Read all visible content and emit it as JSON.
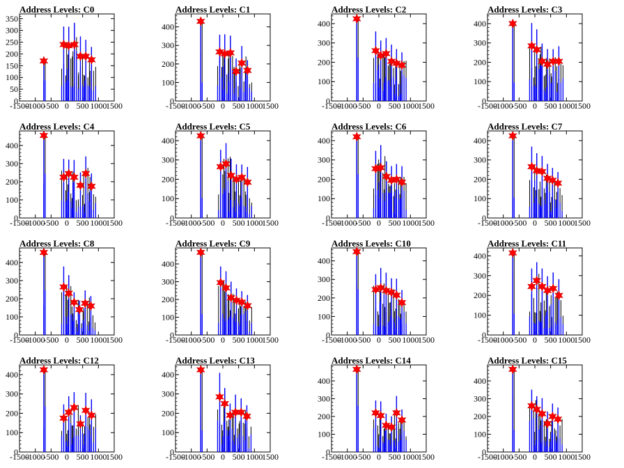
{
  "chart_data": [
    {
      "type": "bar",
      "title": "Address Levels: C0",
      "xlim": [
        -1500,
        1500
      ],
      "ylim": [
        0,
        370
      ],
      "yticks": [
        0,
        50,
        100,
        150,
        200,
        250,
        300,
        350
      ],
      "xticks": [
        -1500,
        -1000,
        -500,
        0,
        500,
        1000,
        1500
      ],
      "peaks": [
        {
          "x": -730,
          "y": 170
        },
        {
          "x": -100,
          "y": 240
        },
        {
          "x": 60,
          "y": 235
        },
        {
          "x": 240,
          "y": 240
        },
        {
          "x": 430,
          "y": 190
        },
        {
          "x": 600,
          "y": 190
        },
        {
          "x": 780,
          "y": 175
        }
      ]
    },
    {
      "type": "bar",
      "title": "Address Levels: C1",
      "xlim": [
        -1500,
        1500
      ],
      "ylim": [
        0,
        470
      ],
      "yticks": [
        0,
        100,
        200,
        300,
        400
      ],
      "xticks": [
        -1500,
        -1000,
        -500,
        0,
        500,
        1000,
        1500
      ],
      "peaks": [
        {
          "x": -700,
          "y": 430
        },
        {
          "x": -100,
          "y": 265
        },
        {
          "x": 60,
          "y": 255
        },
        {
          "x": 240,
          "y": 260
        },
        {
          "x": 420,
          "y": 160
        },
        {
          "x": 600,
          "y": 205
        },
        {
          "x": 780,
          "y": 165
        }
      ]
    },
    {
      "type": "bar",
      "title": "Address Levels: C2",
      "xlim": [
        -1500,
        1500
      ],
      "ylim": [
        0,
        450
      ],
      "yticks": [
        0,
        100,
        200,
        300,
        400
      ],
      "xticks": [
        -1500,
        -1000,
        -500,
        0,
        500,
        1000,
        1500
      ],
      "peaks": [
        {
          "x": -700,
          "y": 425
        },
        {
          "x": -100,
          "y": 260
        },
        {
          "x": 60,
          "y": 235
        },
        {
          "x": 230,
          "y": 245
        },
        {
          "x": 400,
          "y": 205
        },
        {
          "x": 560,
          "y": 195
        },
        {
          "x": 730,
          "y": 185
        }
      ]
    },
    {
      "type": "bar",
      "title": "Address Levels: C3",
      "xlim": [
        -1500,
        1500
      ],
      "ylim": [
        0,
        450
      ],
      "yticks": [
        0,
        100,
        200,
        300,
        400
      ],
      "xticks": [
        -1500,
        -1000,
        -500,
        0,
        500,
        1000,
        1500
      ],
      "peaks": [
        {
          "x": -700,
          "y": 400
        },
        {
          "x": -100,
          "y": 285
        },
        {
          "x": 60,
          "y": 265
        },
        {
          "x": 230,
          "y": 205
        },
        {
          "x": 400,
          "y": 190
        },
        {
          "x": 580,
          "y": 205
        },
        {
          "x": 760,
          "y": 205
        }
      ]
    },
    {
      "type": "bar",
      "title": "Address Levels: C4",
      "xlim": [
        -1500,
        1500
      ],
      "ylim": [
        0,
        480
      ],
      "yticks": [
        0,
        100,
        200,
        300,
        400
      ],
      "xticks": [
        -1500,
        -1000,
        -500,
        0,
        500,
        1000,
        1500
      ],
      "peaks": [
        {
          "x": -730,
          "y": 455
        },
        {
          "x": -100,
          "y": 225
        },
        {
          "x": 60,
          "y": 245
        },
        {
          "x": 230,
          "y": 225
        },
        {
          "x": 430,
          "y": 180
        },
        {
          "x": 600,
          "y": 245
        },
        {
          "x": 780,
          "y": 175
        }
      ]
    },
    {
      "type": "bar",
      "title": "Address Levels: C5",
      "xlim": [
        -1500,
        1500
      ],
      "ylim": [
        0,
        450
      ],
      "yticks": [
        0,
        100,
        200,
        300,
        400
      ],
      "xticks": [
        -1500,
        -1000,
        -500,
        0,
        500,
        1000,
        1500
      ],
      "peaks": [
        {
          "x": -700,
          "y": 425
        },
        {
          "x": -70,
          "y": 265
        },
        {
          "x": 100,
          "y": 280
        },
        {
          "x": 260,
          "y": 220
        },
        {
          "x": 430,
          "y": 200
        },
        {
          "x": 600,
          "y": 210
        },
        {
          "x": 780,
          "y": 185
        }
      ]
    },
    {
      "type": "bar",
      "title": "Address Levels: C6",
      "xlim": [
        -1500,
        1500
      ],
      "ylim": [
        0,
        450
      ],
      "yticks": [
        0,
        100,
        200,
        300,
        400
      ],
      "xticks": [
        -1500,
        -1000,
        -500,
        0,
        500,
        1000,
        1500
      ],
      "peaks": [
        {
          "x": -700,
          "y": 420
        },
        {
          "x": -100,
          "y": 255
        },
        {
          "x": 60,
          "y": 260
        },
        {
          "x": 240,
          "y": 215
        },
        {
          "x": 400,
          "y": 195
        },
        {
          "x": 560,
          "y": 200
        },
        {
          "x": 730,
          "y": 185
        }
      ]
    },
    {
      "type": "bar",
      "title": "Address Levels: C7",
      "xlim": [
        -1500,
        1500
      ],
      "ylim": [
        0,
        450
      ],
      "yticks": [
        0,
        100,
        200,
        300,
        400
      ],
      "xticks": [
        -1500,
        -1000,
        -500,
        0,
        500,
        1000,
        1500
      ],
      "peaks": [
        {
          "x": -700,
          "y": 425
        },
        {
          "x": -100,
          "y": 265
        },
        {
          "x": 60,
          "y": 245
        },
        {
          "x": 230,
          "y": 240
        },
        {
          "x": 400,
          "y": 205
        },
        {
          "x": 560,
          "y": 195
        },
        {
          "x": 730,
          "y": 180
        }
      ]
    },
    {
      "type": "bar",
      "title": "Address Levels: C8",
      "xlim": [
        -1500,
        1500
      ],
      "ylim": [
        0,
        480
      ],
      "yticks": [
        0,
        100,
        200,
        300,
        400
      ],
      "xticks": [
        -1500,
        -1000,
        -500,
        0,
        500,
        1000,
        1500
      ],
      "peaks": [
        {
          "x": -730,
          "y": 455
        },
        {
          "x": -100,
          "y": 265
        },
        {
          "x": 60,
          "y": 230
        },
        {
          "x": 230,
          "y": 180
        },
        {
          "x": 400,
          "y": 140
        },
        {
          "x": 580,
          "y": 175
        },
        {
          "x": 760,
          "y": 160
        }
      ]
    },
    {
      "type": "bar",
      "title": "Address Levels: C9",
      "xlim": [
        -1500,
        1500
      ],
      "ylim": [
        0,
        490
      ],
      "yticks": [
        0,
        100,
        200,
        300,
        400
      ],
      "xticks": [
        -1500,
        -1000,
        -500,
        0,
        500,
        1000,
        1500
      ],
      "peaks": [
        {
          "x": -700,
          "y": 465
        },
        {
          "x": -70,
          "y": 295
        },
        {
          "x": 100,
          "y": 265
        },
        {
          "x": 260,
          "y": 210
        },
        {
          "x": 430,
          "y": 195
        },
        {
          "x": 600,
          "y": 185
        },
        {
          "x": 780,
          "y": 165
        }
      ]
    },
    {
      "type": "bar",
      "title": "Address Levels: C10",
      "xlim": [
        -1500,
        1500
      ],
      "ylim": [
        0,
        470
      ],
      "yticks": [
        0,
        100,
        200,
        300,
        400
      ],
      "xticks": [
        -1500,
        -1000,
        -500,
        0,
        500,
        1000,
        1500
      ],
      "peaks": [
        {
          "x": -700,
          "y": 450
        },
        {
          "x": -100,
          "y": 245
        },
        {
          "x": 60,
          "y": 255
        },
        {
          "x": 230,
          "y": 240
        },
        {
          "x": 400,
          "y": 230
        },
        {
          "x": 560,
          "y": 215
        },
        {
          "x": 730,
          "y": 175
        }
      ]
    },
    {
      "type": "bar",
      "title": "Address Levels: C11",
      "xlim": [
        -1500,
        1500
      ],
      "ylim": [
        0,
        440
      ],
      "yticks": [
        0,
        100,
        200,
        300,
        400
      ],
      "xticks": [
        -1500,
        -1000,
        -500,
        0,
        500,
        1000,
        1500
      ],
      "peaks": [
        {
          "x": -700,
          "y": 415
        },
        {
          "x": -100,
          "y": 245
        },
        {
          "x": 60,
          "y": 275
        },
        {
          "x": 230,
          "y": 245
        },
        {
          "x": 400,
          "y": 225
        },
        {
          "x": 580,
          "y": 235
        },
        {
          "x": 760,
          "y": 200
        }
      ]
    },
    {
      "type": "bar",
      "title": "Address Levels: C12",
      "xlim": [
        -1500,
        1500
      ],
      "ylim": [
        0,
        450
      ],
      "yticks": [
        0,
        100,
        200,
        300,
        400
      ],
      "xticks": [
        -1500,
        -1000,
        -500,
        0,
        500,
        1000,
        1500
      ],
      "peaks": [
        {
          "x": -730,
          "y": 425
        },
        {
          "x": -100,
          "y": 175
        },
        {
          "x": 60,
          "y": 205
        },
        {
          "x": 230,
          "y": 230
        },
        {
          "x": 430,
          "y": 145
        },
        {
          "x": 600,
          "y": 215
        },
        {
          "x": 780,
          "y": 190
        }
      ]
    },
    {
      "type": "bar",
      "title": "Address Levels: C13",
      "xlim": [
        -1500,
        1500
      ],
      "ylim": [
        0,
        450
      ],
      "yticks": [
        0,
        100,
        200,
        300,
        400
      ],
      "xticks": [
        -1500,
        -1000,
        -500,
        0,
        500,
        1000,
        1500
      ],
      "peaks": [
        {
          "x": -700,
          "y": 425
        },
        {
          "x": -100,
          "y": 285
        },
        {
          "x": 60,
          "y": 250
        },
        {
          "x": 230,
          "y": 190
        },
        {
          "x": 400,
          "y": 205
        },
        {
          "x": 580,
          "y": 205
        },
        {
          "x": 760,
          "y": 185
        }
      ]
    },
    {
      "type": "bar",
      "title": "Address Levels: C14",
      "xlim": [
        -1500,
        1500
      ],
      "ylim": [
        0,
        490
      ],
      "yticks": [
        0,
        100,
        200,
        300,
        400
      ],
      "xticks": [
        -1500,
        -1000,
        -500,
        0,
        500,
        1000,
        1500
      ],
      "peaks": [
        {
          "x": -700,
          "y": 465
        },
        {
          "x": -100,
          "y": 220
        },
        {
          "x": 60,
          "y": 205
        },
        {
          "x": 230,
          "y": 150
        },
        {
          "x": 400,
          "y": 140
        },
        {
          "x": 560,
          "y": 220
        },
        {
          "x": 730,
          "y": 180
        }
      ]
    },
    {
      "type": "bar",
      "title": "Address Levels: C15",
      "xlim": [
        -1500,
        1500
      ],
      "ylim": [
        0,
        490
      ],
      "yticks": [
        0,
        100,
        200,
        300,
        400
      ],
      "xticks": [
        -1500,
        -1000,
        -500,
        0,
        500,
        1000,
        1500
      ],
      "peaks": [
        {
          "x": -700,
          "y": 465
        },
        {
          "x": -100,
          "y": 260
        },
        {
          "x": 60,
          "y": 240
        },
        {
          "x": 230,
          "y": 215
        },
        {
          "x": 400,
          "y": 160
        },
        {
          "x": 560,
          "y": 200
        },
        {
          "x": 730,
          "y": 185
        }
      ]
    }
  ],
  "colors": {
    "bar": "#0000ff",
    "outline": "#000000",
    "marker": "#ff0000",
    "background": "#ffffff"
  }
}
